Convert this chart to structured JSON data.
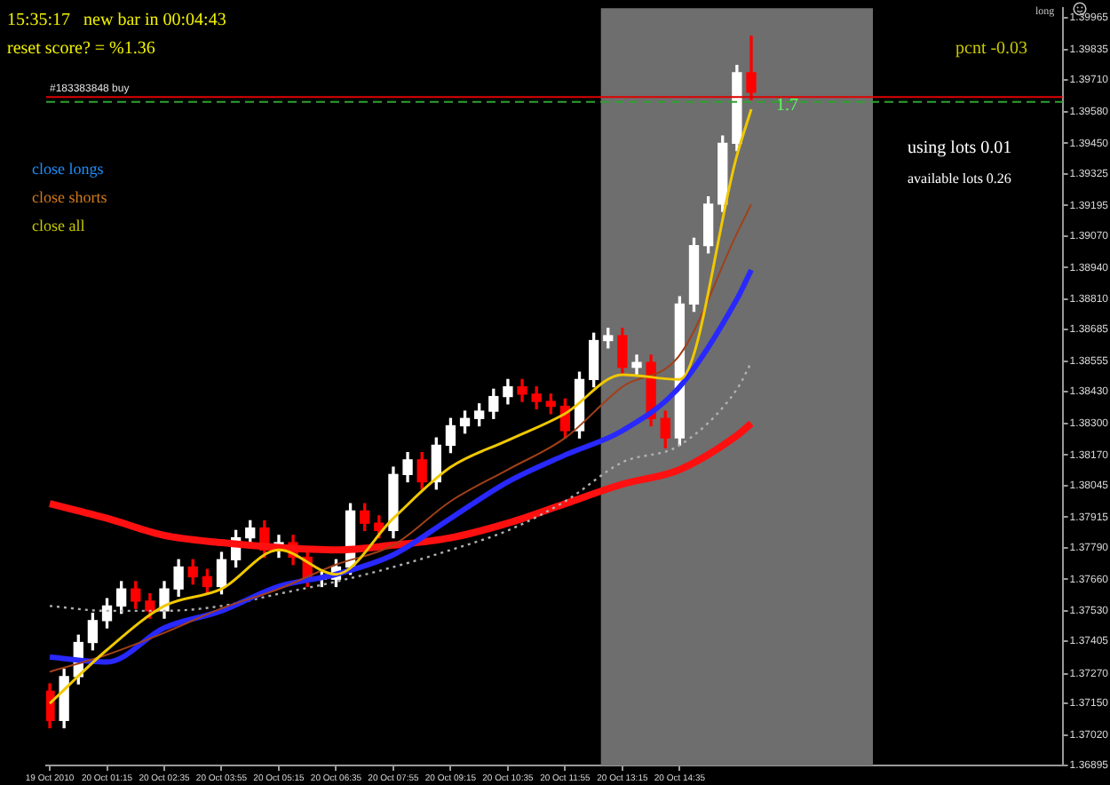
{
  "chart_data": {
    "type": "candlestick",
    "x": [
      "2010-10-19T23:55",
      "2010-10-20T00:15",
      "2010-10-20T00:35",
      "2010-10-20T00:55",
      "2010-10-20T01:15",
      "2010-10-20T01:35",
      "2010-10-20T01:55",
      "2010-10-20T02:15",
      "2010-10-20T02:35",
      "2010-10-20T02:55",
      "2010-10-20T03:15",
      "2010-10-20T03:35",
      "2010-10-20T03:55",
      "2010-10-20T04:15",
      "2010-10-20T04:35",
      "2010-10-20T04:55",
      "2010-10-20T05:15",
      "2010-10-20T05:35",
      "2010-10-20T05:55",
      "2010-10-20T06:15",
      "2010-10-20T06:35",
      "2010-10-20T06:55",
      "2010-10-20T07:15",
      "2010-10-20T07:35",
      "2010-10-20T07:55",
      "2010-10-20T08:15",
      "2010-10-20T08:35",
      "2010-10-20T08:55",
      "2010-10-20T09:15",
      "2010-10-20T09:35",
      "2010-10-20T09:55",
      "2010-10-20T10:15",
      "2010-10-20T10:35",
      "2010-10-20T10:55",
      "2010-10-20T11:15",
      "2010-10-20T11:35",
      "2010-10-20T11:55",
      "2010-10-20T12:15",
      "2010-10-20T12:35",
      "2010-10-20T12:55",
      "2010-10-20T13:15",
      "2010-10-20T13:35",
      "2010-10-20T13:55",
      "2010-10-20T14:15",
      "2010-10-20T14:35",
      "2010-10-20T14:55",
      "2010-10-20T15:15",
      "2010-10-20T15:35",
      "2010-10-20T15:55",
      "2010-10-20T16:15"
    ],
    "ohlc": [
      [
        1.372,
        1.3723,
        1.3705,
        1.3708
      ],
      [
        1.3708,
        1.3729,
        1.3705,
        1.3726
      ],
      [
        1.3726,
        1.3743,
        1.3723,
        1.374
      ],
      [
        1.374,
        1.3752,
        1.3737,
        1.3749
      ],
      [
        1.3749,
        1.3758,
        1.3746,
        1.3755
      ],
      [
        1.3755,
        1.3765,
        1.3752,
        1.3762
      ],
      [
        1.3762,
        1.3765,
        1.3754,
        1.3757
      ],
      [
        1.3757,
        1.376,
        1.375,
        1.3753
      ],
      [
        1.3753,
        1.3765,
        1.375,
        1.3762
      ],
      [
        1.3762,
        1.3774,
        1.3759,
        1.3771
      ],
      [
        1.3771,
        1.3774,
        1.3764,
        1.3767
      ],
      [
        1.3767,
        1.377,
        1.376,
        1.3763
      ],
      [
        1.3763,
        1.3777,
        1.376,
        1.3774
      ],
      [
        1.3774,
        1.3786,
        1.3771,
        1.3783
      ],
      [
        1.3783,
        1.379,
        1.378,
        1.3787
      ],
      [
        1.3787,
        1.379,
        1.3775,
        1.3778
      ],
      [
        1.3778,
        1.3784,
        1.3775,
        1.3781
      ],
      [
        1.3781,
        1.3784,
        1.3772,
        1.3775
      ],
      [
        1.3775,
        1.3778,
        1.3763,
        1.3766
      ],
      [
        1.3766,
        1.3769,
        1.3763,
        1.3766
      ],
      [
        1.3766,
        1.3774,
        1.3763,
        1.3771
      ],
      [
        1.3771,
        1.3797,
        1.3768,
        1.3794
      ],
      [
        1.3794,
        1.3797,
        1.3786,
        1.3789
      ],
      [
        1.3789,
        1.3792,
        1.3783,
        1.3786
      ],
      [
        1.3786,
        1.3812,
        1.3783,
        1.3809
      ],
      [
        1.3809,
        1.3818,
        1.3806,
        1.3815
      ],
      [
        1.3815,
        1.3818,
        1.3803,
        1.3806
      ],
      [
        1.3806,
        1.3824,
        1.3803,
        1.3821
      ],
      [
        1.3821,
        1.3832,
        1.3818,
        1.3829
      ],
      [
        1.3829,
        1.3835,
        1.3826,
        1.3832
      ],
      [
        1.3832,
        1.3838,
        1.3829,
        1.3835
      ],
      [
        1.3835,
        1.3844,
        1.3832,
        1.3841
      ],
      [
        1.3841,
        1.3848,
        1.3838,
        1.3845
      ],
      [
        1.3845,
        1.3848,
        1.3839,
        1.3842
      ],
      [
        1.3842,
        1.3845,
        1.3836,
        1.3839
      ],
      [
        1.3839,
        1.3842,
        1.3834,
        1.3837
      ],
      [
        1.3837,
        1.384,
        1.3824,
        1.3827
      ],
      [
        1.3827,
        1.3851,
        1.3824,
        1.3848
      ],
      [
        1.3848,
        1.3867,
        1.3845,
        1.3864
      ],
      [
        1.3864,
        1.3869,
        1.3861,
        1.3866
      ],
      [
        1.3866,
        1.3869,
        1.385,
        1.3853
      ],
      [
        1.3853,
        1.3858,
        1.385,
        1.3855
      ],
      [
        1.3855,
        1.3858,
        1.3829,
        1.3832
      ],
      [
        1.3832,
        1.3835,
        1.382,
        1.3824
      ],
      [
        1.3824,
        1.3882,
        1.3821,
        1.3879
      ],
      [
        1.3879,
        1.3906,
        1.3876,
        1.3903
      ],
      [
        1.3903,
        1.3923,
        1.39,
        1.392
      ],
      [
        1.392,
        1.3948,
        1.3917,
        1.3945
      ],
      [
        1.3945,
        1.3977,
        1.3942,
        1.3974
      ],
      [
        1.3974,
        1.3989,
        1.3963,
        1.3966
      ]
    ],
    "colors": [
      "#ff0000",
      "#ffffff",
      "#ffffff",
      "#ffffff",
      "#ffffff",
      "#ffffff",
      "#ff0000",
      "#ff0000",
      "#ffffff",
      "#ffffff",
      "#ff0000",
      "#ff0000",
      "#ffffff",
      "#ffffff",
      "#ffffff",
      "#ff0000",
      "#ffffff",
      "#ff0000",
      "#ff0000",
      "#ffffff",
      "#ffffff",
      "#ffffff",
      "#ff0000",
      "#ff0000",
      "#ffffff",
      "#ffffff",
      "#ff0000",
      "#ffffff",
      "#ffffff",
      "#ffffff",
      "#ffffff",
      "#ffffff",
      "#ffffff",
      "#ff0000",
      "#ff0000",
      "#ff0000",
      "#ff0000",
      "#ffffff",
      "#ffffff",
      "#ffffff",
      "#ff0000",
      "#ffffff",
      "#ff0000",
      "#ff0000",
      "#ffffff",
      "#ffffff",
      "#ffffff",
      "#ffffff",
      "#ffffff",
      "#ff0000"
    ],
    "series": [
      {
        "type": "line",
        "color": "#f0c800",
        "x": [
          "2010-10-19T23:55",
          "2010-10-20T01:15",
          "2010-10-20T02:35",
          "2010-10-20T03:55",
          "2010-10-20T05:15",
          "2010-10-20T06:35",
          "2010-10-20T07:55",
          "2010-10-20T09:15",
          "2010-10-20T10:35",
          "2010-10-20T11:55",
          "2010-10-20T13:15",
          "2010-10-20T14:35",
          "2010-10-20T15:55",
          "2010-10-20T16:15"
        ],
        "values": [
          1.3715,
          1.3737,
          1.3755,
          1.3762,
          1.3778,
          1.3768,
          1.3791,
          1.3812,
          1.3823,
          1.3834,
          1.385,
          1.3848,
          1.394,
          1.3959
        ]
      },
      {
        "type": "line",
        "color": "#a0401a",
        "x": [
          "2010-10-19T23:55",
          "2010-10-20T01:15",
          "2010-10-20T02:35",
          "2010-10-20T03:55",
          "2010-10-20T05:15",
          "2010-10-20T06:35",
          "2010-10-20T07:55",
          "2010-10-20T09:15",
          "2010-10-20T10:35",
          "2010-10-20T11:55",
          "2010-10-20T13:15",
          "2010-10-20T14:35",
          "2010-10-20T15:55",
          "2010-10-20T16:15"
        ],
        "values": [
          1.3728,
          1.3735,
          1.3744,
          1.3754,
          1.3762,
          1.3772,
          1.378,
          1.3798,
          1.3811,
          1.3824,
          1.3845,
          1.3858,
          1.3908,
          1.392
        ]
      },
      {
        "type": "line",
        "color": "#2828ff",
        "x": [
          "2010-10-19T23:55",
          "2010-10-20T01:15",
          "2010-10-20T02:35",
          "2010-10-20T03:55",
          "2010-10-20T05:15",
          "2010-10-20T06:35",
          "2010-10-20T07:55",
          "2010-10-20T09:15",
          "2010-10-20T10:35",
          "2010-10-20T11:55",
          "2010-10-20T13:15",
          "2010-10-20T14:35",
          "2010-10-20T15:55",
          "2010-10-20T16:15"
        ],
        "values": [
          1.3734,
          1.3732,
          1.3746,
          1.3753,
          1.3763,
          1.3768,
          1.3776,
          1.3791,
          1.3806,
          1.3817,
          1.3827,
          1.3845,
          1.3881,
          1.3893
        ]
      },
      {
        "type": "line",
        "color": "#b0b0b0",
        "line_style": "dotted",
        "x": [
          "2010-10-19T23:55",
          "2010-10-20T01:15",
          "2010-10-20T02:35",
          "2010-10-20T03:55",
          "2010-10-20T05:15",
          "2010-10-20T06:35",
          "2010-10-20T07:55",
          "2010-10-20T09:15",
          "2010-10-20T10:35",
          "2010-10-20T11:55",
          "2010-10-20T13:15",
          "2010-10-20T14:35",
          "2010-10-20T15:55",
          "2010-10-20T16:15"
        ],
        "values": [
          1.3755,
          1.3753,
          1.3753,
          1.3755,
          1.376,
          1.3765,
          1.3771,
          1.3778,
          1.3786,
          1.3798,
          1.3814,
          1.3821,
          1.3844,
          1.3855
        ]
      },
      {
        "type": "line",
        "color": "#ff1010",
        "x": [
          "2010-10-19T23:55",
          "2010-10-20T01:15",
          "2010-10-20T02:35",
          "2010-10-20T03:55",
          "2010-10-20T05:15",
          "2010-10-20T06:35",
          "2010-10-20T07:55",
          "2010-10-20T09:15",
          "2010-10-20T10:35",
          "2010-10-20T11:55",
          "2010-10-20T13:15",
          "2010-10-20T14:35",
          "2010-10-20T15:55",
          "2010-10-20T16:15"
        ],
        "values": [
          1.3797,
          1.3791,
          1.3784,
          1.3781,
          1.3779,
          1.3778,
          1.378,
          1.3783,
          1.3789,
          1.3797,
          1.3805,
          1.3811,
          1.3825,
          1.383
        ]
      }
    ],
    "xlim": [
      "2010-10-19T23:50",
      "2010-10-20T23:30"
    ],
    "xticks": [
      {
        "value": "2010-10-19T23:55",
        "label": "19 Oct 2010"
      },
      {
        "value": "2010-10-20T01:15",
        "label": "20 Oct 01:15"
      },
      {
        "value": "2010-10-20T02:35",
        "label": "20 Oct 02:35"
      },
      {
        "value": "2010-10-20T03:55",
        "label": "20 Oct 03:55"
      },
      {
        "value": "2010-10-20T05:15",
        "label": "20 Oct 05:15"
      },
      {
        "value": "2010-10-20T06:35",
        "label": "20 Oct 06:35"
      },
      {
        "value": "2010-10-20T07:55",
        "label": "20 Oct 07:55"
      },
      {
        "value": "2010-10-20T09:15",
        "label": "20 Oct 09:15"
      },
      {
        "value": "2010-10-20T10:35",
        "label": "20 Oct 10:35"
      },
      {
        "value": "2010-10-20T11:55",
        "label": "20 Oct 11:55"
      },
      {
        "value": "2010-10-20T13:15",
        "label": "20 Oct 13:15"
      },
      {
        "value": "2010-10-20T14:35",
        "label": "20 Oct 14:35"
      }
    ],
    "ylim": [
      1.36895,
      1.40005
    ],
    "yticks": [
      1.39965,
      1.39835,
      {
        "value": 1.3971,
        "label": "1.39710"
      },
      {
        "value": 1.3958,
        "label": "1.39580"
      },
      {
        "value": 1.3945,
        "label": "1.39450"
      },
      1.39325,
      1.39195,
      {
        "value": 1.3907,
        "label": "1.39070"
      },
      {
        "value": 1.3894,
        "label": "1.38940"
      },
      {
        "value": 1.3881,
        "label": "1.38810"
      },
      1.38685,
      1.38555,
      {
        "value": 1.3843,
        "label": "1.38430"
      },
      {
        "value": 1.383,
        "label": "1.38300"
      },
      {
        "value": 1.3817,
        "label": "1.38170"
      },
      1.38045,
      1.37915,
      {
        "value": 1.3779,
        "label": "1.37790"
      },
      {
        "value": 1.3766,
        "label": "1.37660"
      },
      {
        "value": 1.3753,
        "label": "1.37530"
      },
      1.37405,
      {
        "value": 1.3727,
        "label": "1.37270"
      },
      {
        "value": 1.3715,
        "label": "1.37150"
      },
      {
        "value": 1.3702,
        "label": "1.37020"
      },
      1.36895
    ],
    "ref_lines": [
      {
        "axis": "y",
        "value": 1.3964,
        "label": "#183383848 buy",
        "color": "#e00000",
        "line_style": "solid"
      },
      {
        "axis": "y",
        "value": 1.3962,
        "color": "#30a030",
        "line_style": "dashed"
      }
    ],
    "bands": [
      {
        "axis": "x",
        "from": "2010-10-20T12:45",
        "to": "2010-10-20T19:05",
        "color": "#6e6e6e"
      }
    ],
    "annotations": [
      "15:35:17   new bar in 00:04:43",
      "reset score? = %1.36",
      "close longs",
      "close shorts",
      "close all",
      "pcnt -0.03",
      "using lots 0.01",
      "available lots 0.26",
      "long",
      "1.7"
    ]
  }
}
